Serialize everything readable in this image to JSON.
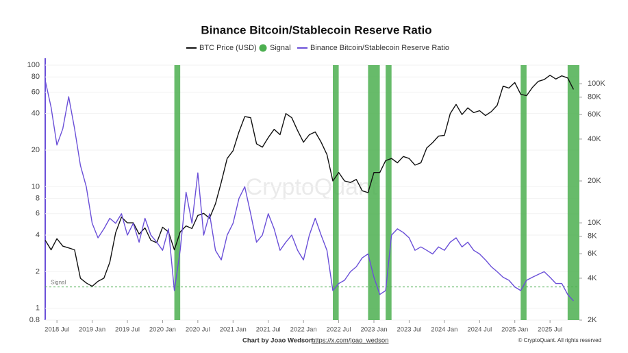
{
  "chart_data": {
    "type": "line",
    "title": "Binance Bitcoin/Stablecoin Reserve Ratio",
    "watermark": "CryptoQuant",
    "credit_prefix": "Chart by Joao Wedson:",
    "credit_link": "https://x.com/joao_wedson",
    "copyright": "© CryptoQuant. All rights reserved",
    "log_scale": true,
    "xlim": [
      "2018-05",
      "2025-12"
    ],
    "xticks": [
      {
        "value": "2018-07",
        "label": "2018 Jul"
      },
      {
        "value": "2019-01",
        "label": "2019 Jan"
      },
      {
        "value": "2019-07",
        "label": "2019 Jul"
      },
      {
        "value": "2020-01",
        "label": "2020 Jan"
      },
      {
        "value": "2020-07",
        "label": "2020 Jul"
      },
      {
        "value": "2021-01",
        "label": "2021 Jan"
      },
      {
        "value": "2021-07",
        "label": "2021 Jul"
      },
      {
        "value": "2022-01",
        "label": "2022 Jan"
      },
      {
        "value": "2022-07",
        "label": "2022 Jul"
      },
      {
        "value": "2023-01",
        "label": "2023 Jan"
      },
      {
        "value": "2023-07",
        "label": "2023 Jul"
      },
      {
        "value": "2024-01",
        "label": "2024 Jan"
      },
      {
        "value": "2024-07",
        "label": "2024 Jul"
      },
      {
        "value": "2025-01",
        "label": "2025 Jan"
      },
      {
        "value": "2025-07",
        "label": "2025 Jul"
      }
    ],
    "ylim": [
      0.8,
      100
    ],
    "yticks": [
      0.8,
      1,
      2,
      4,
      6,
      8,
      10,
      20,
      40,
      60,
      80,
      100
    ],
    "y2lim": [
      2000,
      136000
    ],
    "y2ticks": [
      {
        "value": 2000,
        "label": "2K"
      },
      {
        "value": 4000,
        "label": "4K"
      },
      {
        "value": 6000,
        "label": "6K"
      },
      {
        "value": 8000,
        "label": "8K"
      },
      {
        "value": 10000,
        "label": "10K"
      },
      {
        "value": 20000,
        "label": "20K"
      },
      {
        "value": 40000,
        "label": "40K"
      },
      {
        "value": 60000,
        "label": "60K"
      },
      {
        "value": 80000,
        "label": "80K"
      },
      {
        "value": 100000,
        "label": "100K"
      }
    ],
    "x": [
      "2018-05",
      "2018-06",
      "2018-07",
      "2018-08",
      "2018-09",
      "2018-10",
      "2018-11",
      "2018-12",
      "2019-01",
      "2019-02",
      "2019-03",
      "2019-04",
      "2019-05",
      "2019-06",
      "2019-07",
      "2019-08",
      "2019-09",
      "2019-10",
      "2019-11",
      "2019-12",
      "2020-01",
      "2020-02",
      "2020-03",
      "2020-04",
      "2020-05",
      "2020-06",
      "2020-07",
      "2020-08",
      "2020-09",
      "2020-10",
      "2020-11",
      "2020-12",
      "2021-01",
      "2021-02",
      "2021-03",
      "2021-04",
      "2021-05",
      "2021-06",
      "2021-07",
      "2021-08",
      "2021-09",
      "2021-10",
      "2021-11",
      "2021-12",
      "2022-01",
      "2022-02",
      "2022-03",
      "2022-04",
      "2022-05",
      "2022-06",
      "2022-07",
      "2022-08",
      "2022-09",
      "2022-10",
      "2022-11",
      "2022-12",
      "2023-01",
      "2023-02",
      "2023-03",
      "2023-04",
      "2023-05",
      "2023-06",
      "2023-07",
      "2023-08",
      "2023-09",
      "2023-10",
      "2023-11",
      "2023-12",
      "2024-01",
      "2024-02",
      "2024-03",
      "2024-04",
      "2024-05",
      "2024-06",
      "2024-07",
      "2024-08",
      "2024-09",
      "2024-10",
      "2024-11",
      "2024-12",
      "2025-01",
      "2025-02",
      "2025-03",
      "2025-04",
      "2025-05",
      "2025-06",
      "2025-07",
      "2025-08",
      "2025-09",
      "2025-10",
      "2025-11"
    ],
    "series": [
      {
        "name": "BTC Price (USD)",
        "color": "#111111",
        "axis": "y2",
        "values": [
          7500,
          6400,
          7700,
          6800,
          6600,
          6400,
          4000,
          3700,
          3500,
          3800,
          4000,
          5200,
          8500,
          11000,
          10000,
          10000,
          8300,
          9200,
          7500,
          7200,
          9300,
          8600,
          6400,
          8600,
          9500,
          9100,
          11300,
          11700,
          10800,
          13700,
          19600,
          29000,
          33000,
          45000,
          58000,
          57000,
          37000,
          35000,
          41000,
          47000,
          43000,
          61000,
          57000,
          46000,
          38000,
          43000,
          45000,
          38000,
          31000,
          20000,
          23000,
          20000,
          19500,
          20500,
          17000,
          16500,
          23000,
          23000,
          28000,
          29000,
          27000,
          30000,
          29000,
          26000,
          27000,
          34500,
          37700,
          42000,
          42500,
          61000,
          71000,
          60000,
          67000,
          62000,
          64000,
          59000,
          63000,
          70000,
          96000,
          93000,
          102000,
          84000,
          82000,
          94000,
          104000,
          107000,
          115000,
          108000,
          114000,
          110000,
          91000
        ]
      },
      {
        "name": "Binance Bitcoin/Stablecoin Reserve Ratio",
        "color": "#6a4fd8",
        "axis": "y",
        "values": [
          75,
          45,
          22,
          30,
          55,
          30,
          15,
          10,
          5,
          3.8,
          4.5,
          5.5,
          5,
          6,
          4,
          5,
          3.5,
          5.5,
          4,
          3.5,
          3,
          4.5,
          1.4,
          3,
          9,
          5,
          13,
          4,
          6,
          3,
          2.5,
          4,
          5,
          8,
          10,
          6,
          3.5,
          4,
          6,
          4.5,
          3,
          3.5,
          4,
          3,
          2.5,
          4,
          5.5,
          4,
          3,
          1.4,
          1.6,
          1.7,
          2,
          2.2,
          2.6,
          2.8,
          1.8,
          1.3,
          1.4,
          4,
          4.5,
          4.2,
          3.8,
          3,
          3.2,
          3,
          2.8,
          3.2,
          3,
          3.5,
          3.8,
          3.2,
          3.5,
          3,
          2.8,
          2.5,
          2.2,
          2,
          1.8,
          1.7,
          1.5,
          1.4,
          1.7,
          1.8,
          1.9,
          2,
          1.8,
          1.6,
          1.6,
          1.3,
          1.15
        ]
      }
    ],
    "signals": {
      "name": "Signal",
      "color": "#4caf50",
      "threshold": 1.5,
      "periods": [
        [
          "2020-03",
          "2020-04"
        ],
        [
          "2022-06",
          "2022-07"
        ],
        [
          "2022-12",
          "2023-02"
        ],
        [
          "2023-03",
          "2023-04"
        ],
        [
          "2025-02",
          "2025-03"
        ],
        [
          "2025-10",
          "2025-12"
        ]
      ]
    }
  }
}
